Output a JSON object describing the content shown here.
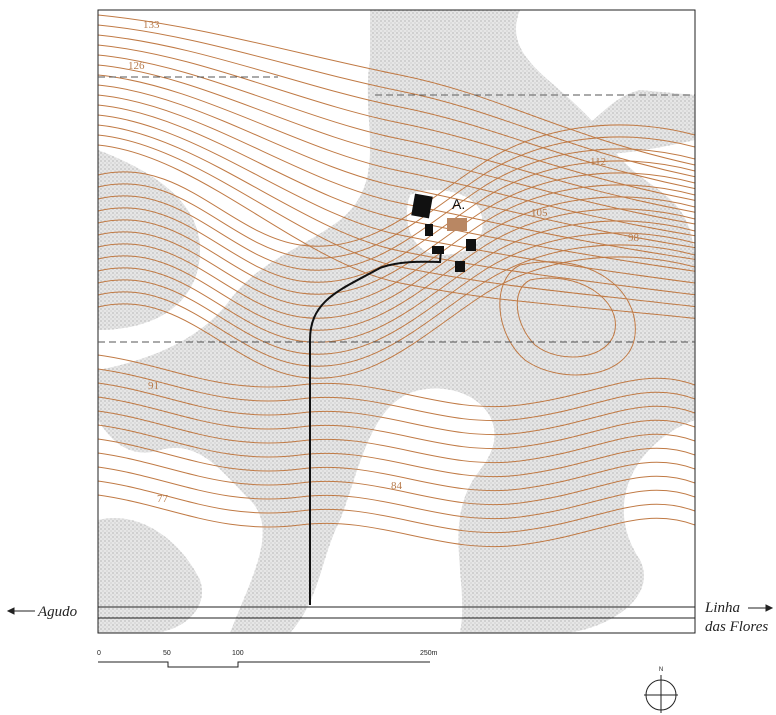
{
  "map": {
    "contour_labels": [
      "133",
      "126",
      "112",
      "105",
      "98",
      "91",
      "84",
      "77"
    ],
    "site_label": "A.",
    "west_destination": "Agudo",
    "east_destination": [
      "Linha",
      "das Flores"
    ],
    "scale": {
      "labels": [
        "0",
        "50",
        "100",
        "250m"
      ]
    },
    "north": "N"
  }
}
